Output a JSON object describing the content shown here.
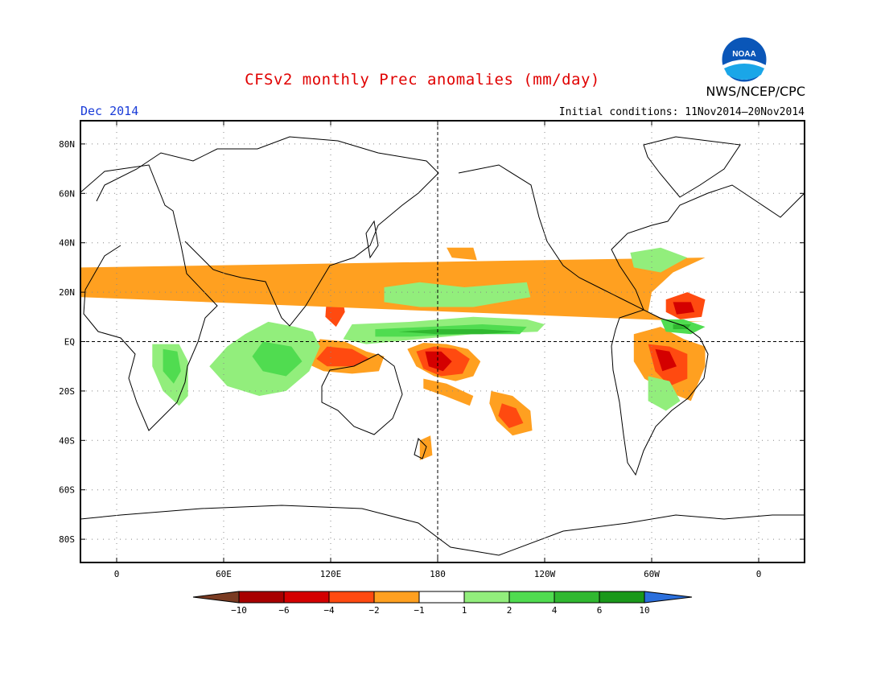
{
  "title": "CFSv2 monthly Prec anomalies (mm/day)",
  "period": "Dec 2014",
  "initial_conditions": "Initial conditions: 11Nov2014–20Nov2014",
  "agency": "NWS/NCEP/CPC",
  "logo_text": "NOAA",
  "lat_labels": [
    "80N",
    "60N",
    "40N",
    "20N",
    "EQ",
    "20S",
    "40S",
    "60S",
    "80S"
  ],
  "lon_labels": [
    "0",
    "60E",
    "120E",
    "180",
    "120W",
    "60W",
    "0"
  ],
  "colorbar": {
    "labels": [
      "−10",
      "−6",
      "−4",
      "−2",
      "−1",
      "1",
      "2",
      "4",
      "6",
      "10"
    ],
    "colors": [
      "#7a3b22",
      "#a80000",
      "#d40000",
      "#ff4a10",
      "#ffa020",
      "#ffffff",
      "#92ee7c",
      "#50dc50",
      "#30b830",
      "#1a981a",
      "#2b6fdc"
    ]
  },
  "anomaly_regions": [
    {
      "name": "central-pacific-dry",
      "color": "#ffa020",
      "lonlat": [
        [
          163,
          -3
        ],
        [
          172,
          -0.5
        ],
        [
          185,
          -1
        ],
        [
          197,
          -3
        ],
        [
          204,
          -8
        ],
        [
          200,
          -14
        ],
        [
          190,
          -16
        ],
        [
          178,
          -14
        ],
        [
          168,
          -10
        ]
      ]
    },
    {
      "name": "central-pacific-dry-core",
      "color": "#ff4a10",
      "lonlat": [
        [
          168,
          -4
        ],
        [
          178,
          -2
        ],
        [
          190,
          -3
        ],
        [
          198,
          -7
        ],
        [
          194,
          -13
        ],
        [
          182,
          -14
        ],
        [
          172,
          -11
        ]
      ]
    },
    {
      "name": "central-pacific-dry-max",
      "color": "#d40000",
      "lonlat": [
        [
          173,
          -4
        ],
        [
          182,
          -4
        ],
        [
          188,
          -8
        ],
        [
          183,
          -12
        ],
        [
          175,
          -10
        ]
      ]
    },
    {
      "name": "south-pacific-dry",
      "color": "#ffa020",
      "lonlat": [
        [
          210,
          -20
        ],
        [
          222,
          -22
        ],
        [
          232,
          -28
        ],
        [
          233,
          -36
        ],
        [
          222,
          -38
        ],
        [
          213,
          -32
        ],
        [
          209,
          -25
        ]
      ]
    },
    {
      "name": "south-pacific-dry-core",
      "color": "#ff4a10",
      "lonlat": [
        [
          216,
          -25
        ],
        [
          224,
          -27
        ],
        [
          228,
          -33
        ],
        [
          220,
          -35
        ],
        [
          214,
          -30
        ]
      ]
    },
    {
      "name": "spcz-dry-band",
      "color": "#ffa020",
      "lonlat": [
        [
          172,
          -15
        ],
        [
          185,
          -17
        ],
        [
          200,
          -22
        ],
        [
          198,
          -26
        ],
        [
          184,
          -22
        ],
        [
          172,
          -19
        ]
      ]
    },
    {
      "name": "equatorial-pacific-wet",
      "color": "#92ee7c",
      "lonlat": [
        [
          132,
          7
        ],
        [
          165,
          8
        ],
        [
          200,
          10
        ],
        [
          230,
          9
        ],
        [
          240,
          7
        ],
        [
          236,
          4
        ],
        [
          200,
          3
        ],
        [
          170,
          1
        ],
        [
          140,
          -1
        ],
        [
          127,
          1
        ]
      ]
    },
    {
      "name": "equatorial-pacific-wet-core",
      "color": "#50dc50",
      "lonlat": [
        [
          145,
          5
        ],
        [
          175,
          6
        ],
        [
          205,
          7
        ],
        [
          230,
          6
        ],
        [
          226,
          3
        ],
        [
          195,
          3
        ],
        [
          165,
          2
        ],
        [
          145,
          2
        ]
      ]
    },
    {
      "name": "equatorial-pacific-wet-max",
      "color": "#30b830",
      "lonlat": [
        [
          158,
          4
        ],
        [
          180,
          5
        ],
        [
          205,
          5
        ],
        [
          225,
          4
        ],
        [
          205,
          3
        ],
        [
          180,
          3
        ]
      ]
    },
    {
      "name": "maritime-continent-dry",
      "color": "#ffa020",
      "lonlat": [
        [
          114,
          1
        ],
        [
          128,
          0
        ],
        [
          140,
          -4
        ],
        [
          150,
          -6
        ],
        [
          147,
          -12
        ],
        [
          132,
          -13
        ],
        [
          116,
          -12
        ],
        [
          107,
          -9
        ],
        [
          110,
          -4
        ]
      ]
    },
    {
      "name": "maritime-continent-dry-core",
      "color": "#ff4a10",
      "lonlat": [
        [
          118,
          -2
        ],
        [
          132,
          -3
        ],
        [
          142,
          -7
        ],
        [
          133,
          -10
        ],
        [
          118,
          -10
        ],
        [
          112,
          -7
        ]
      ]
    },
    {
      "name": "philippines-dry",
      "color": "#ff4a10",
      "lonlat": [
        [
          118,
          20
        ],
        [
          126,
          20
        ],
        [
          128,
          12
        ],
        [
          123,
          6
        ],
        [
          117,
          10
        ]
      ]
    },
    {
      "name": "indian-ocean-wet",
      "color": "#92ee7c",
      "lonlat": [
        [
          85,
          8
        ],
        [
          100,
          6
        ],
        [
          110,
          4
        ],
        [
          114,
          -2
        ],
        [
          108,
          -12
        ],
        [
          95,
          -20
        ],
        [
          80,
          -22
        ],
        [
          62,
          -18
        ],
        [
          52,
          -10
        ],
        [
          62,
          -2
        ],
        [
          72,
          3
        ]
      ]
    },
    {
      "name": "indian-ocean-wet-core",
      "color": "#50dc50",
      "lonlat": [
        [
          82,
          0
        ],
        [
          98,
          -2
        ],
        [
          104,
          -8
        ],
        [
          95,
          -14
        ],
        [
          82,
          -12
        ],
        [
          76,
          -6
        ]
      ]
    },
    {
      "name": "east-africa-wet",
      "color": "#92ee7c",
      "lonlat": [
        [
          20,
          -1
        ],
        [
          35,
          -1
        ],
        [
          40,
          -8
        ],
        [
          40,
          -22
        ],
        [
          35,
          -26
        ],
        [
          26,
          -20
        ],
        [
          20,
          -10
        ]
      ]
    },
    {
      "name": "east-africa-wet-core",
      "color": "#50dc50",
      "lonlat": [
        [
          26,
          -3
        ],
        [
          34,
          -4
        ],
        [
          36,
          -12
        ],
        [
          32,
          -17
        ],
        [
          26,
          -12
        ]
      ]
    },
    {
      "name": "south-america-dry",
      "color": "#ffa020",
      "lonlat": [
        [
          -70,
          3
        ],
        [
          -55,
          6
        ],
        [
          -42,
          1
        ],
        [
          -30,
          -2
        ],
        [
          -30,
          -10
        ],
        [
          -38,
          -24
        ],
        [
          -52,
          -20
        ],
        [
          -64,
          -15
        ],
        [
          -70,
          -8
        ]
      ]
    },
    {
      "name": "south-america-dry-core",
      "color": "#ff4a10",
      "lonlat": [
        [
          -62,
          -1
        ],
        [
          -50,
          -2
        ],
        [
          -40,
          -5
        ],
        [
          -40,
          -15
        ],
        [
          -50,
          -18
        ],
        [
          -58,
          -12
        ]
      ]
    },
    {
      "name": "south-america-dry-max",
      "color": "#d40000",
      "lonlat": [
        [
          -58,
          -3
        ],
        [
          -50,
          -4
        ],
        [
          -46,
          -10
        ],
        [
          -54,
          -12
        ]
      ]
    },
    {
      "name": "brazil-south-wet",
      "color": "#92ee7c",
      "lonlat": [
        [
          -62,
          -14
        ],
        [
          -50,
          -16
        ],
        [
          -44,
          -24
        ],
        [
          -52,
          -28
        ],
        [
          -62,
          -24
        ]
      ]
    },
    {
      "name": "north-atlantic-dry",
      "color": "#ffa020",
      "lonlat": [
        [
          -60,
          20
        ],
        [
          -48,
          28
        ],
        [
          -30,
          34
        ],
        [
          -20,
          30
        ],
        [
          -20,
          18
        ],
        [
          -30,
          8
        ],
        [
          -50,
          8
        ],
        [
          -62,
          12
        ]
      ]
    },
    {
      "name": "north-atlantic-dry-core",
      "color": "#ff4a10",
      "lonlat": [
        [
          -52,
          17
        ],
        [
          -40,
          20
        ],
        [
          -30,
          17
        ],
        [
          -32,
          10
        ],
        [
          -44,
          9
        ],
        [
          -52,
          12
        ]
      ]
    },
    {
      "name": "north-atlantic-dry-max",
      "color": "#d40000",
      "lonlat": [
        [
          -48,
          16
        ],
        [
          -38,
          16
        ],
        [
          -36,
          12
        ],
        [
          -46,
          11
        ]
      ]
    },
    {
      "name": "atlantic-itcz-wet",
      "color": "#50dc50",
      "lonlat": [
        [
          -55,
          9
        ],
        [
          -42,
          9
        ],
        [
          -30,
          6
        ],
        [
          -38,
          3
        ],
        [
          -52,
          4
        ]
      ]
    },
    {
      "name": "atlantic-itcz-wet-core",
      "color": "#30b830",
      "lonlat": [
        [
          -48,
          7
        ],
        [
          -38,
          7
        ],
        [
          -40,
          5
        ],
        [
          -48,
          5
        ]
      ]
    },
    {
      "name": "north-atlantic-wet",
      "color": "#92ee7c",
      "lonlat": [
        [
          -72,
          36
        ],
        [
          -55,
          38
        ],
        [
          -40,
          34
        ],
        [
          -55,
          28
        ],
        [
          -70,
          30
        ]
      ]
    },
    {
      "name": "gulf-of-mexico-dry",
      "color": "#ffa020",
      "lonlat": [
        [
          -98,
          24
        ],
        [
          -92,
          28
        ],
        [
          -88,
          22
        ],
        [
          -95,
          18
        ]
      ]
    },
    {
      "name": "north-pacific-dry",
      "color": "#ffa020",
      "lonlat": [
        [
          185,
          38
        ],
        [
          200,
          38
        ],
        [
          202,
          33
        ],
        [
          188,
          34
        ]
      ]
    },
    {
      "name": "north-pacific-wet",
      "color": "#92ee7c",
      "lonlat": [
        [
          150,
          22
        ],
        [
          170,
          24
        ],
        [
          195,
          22
        ],
        [
          230,
          24
        ],
        [
          232,
          18
        ],
        [
          200,
          14
        ],
        [
          170,
          14
        ],
        [
          150,
          16
        ]
      ]
    },
    {
      "name": "tasman-dry",
      "color": "#ffa020",
      "lonlat": [
        [
          170,
          -40
        ],
        [
          176,
          -38
        ],
        [
          177,
          -46
        ],
        [
          170,
          -48
        ]
      ]
    }
  ]
}
